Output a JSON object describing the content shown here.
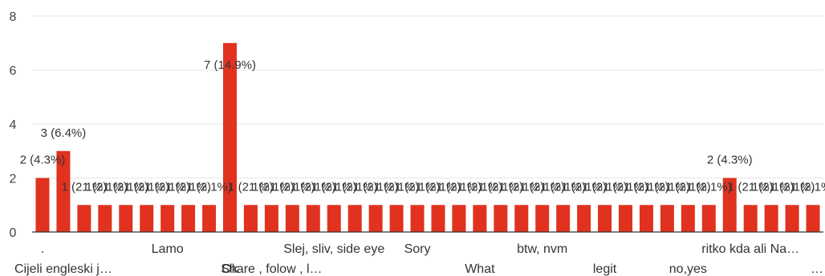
{
  "chart_data": {
    "type": "bar",
    "title": "",
    "xlabel": "",
    "ylabel": "",
    "ylim": [
      0,
      8
    ],
    "yticks": [
      0,
      2,
      4,
      6,
      8
    ],
    "grid": true,
    "bar_color": "#e0321f",
    "categories": [
      ".",
      "Cijeli engleski j…",
      "",
      "",
      "",
      "",
      "Lamo",
      "",
      "",
      "Ok",
      "",
      "Share , folow , l…",
      "",
      "",
      "Slej, sliv, side eye",
      "",
      "",
      "",
      "Sory",
      "",
      "",
      "What",
      "",
      "",
      "btw, nvm",
      "",
      "",
      "legit",
      "",
      "",
      "",
      "no,yes",
      "",
      "",
      "ritko kda ali Na…",
      "",
      "",
      "…"
    ],
    "values": [
      2,
      3,
      1,
      1,
      1,
      1,
      1,
      1,
      1,
      7,
      1,
      1,
      1,
      1,
      1,
      1,
      1,
      1,
      1,
      1,
      1,
      1,
      1,
      1,
      1,
      1,
      1,
      1,
      1,
      1,
      1,
      1,
      1,
      2,
      1,
      1,
      1,
      1
    ],
    "data_labels": [
      "2 (4.3%)",
      "3 (6.4%)",
      "1 (2.1%)",
      "1 (2.1%)",
      "1 (2.1%)",
      "1 (2.1%)",
      "1 (2.1%)",
      "1 (2.1%)",
      "1 (2.1%)",
      "7 (14.9%)",
      "1 (2.1%)",
      "1 (2.1%)",
      "1 (2.1%)",
      "1 (2.1%)",
      "1 (2.1%)",
      "1 (2.1%)",
      "1 (2.1%)",
      "1 (2.1%)",
      "1 (2.1%)",
      "1 (2.1%)",
      "1 (2.1%)",
      "1 (2.1%)",
      "1 (2.1%)",
      "1 (2.1%)",
      "1 (2.1%)",
      "1 (2.1%)",
      "1 (2.1%)",
      "1 (2.1%)",
      "1 (2.1%)",
      "1 (2.1%)",
      "1 (2.1%)",
      "1 (2.1%)",
      "1 (2.1%)",
      "2 (4.3%)",
      "1 (2.1%)",
      "1 (2.1%)",
      "1 (2.1%)",
      "1 (2.1%)"
    ]
  }
}
